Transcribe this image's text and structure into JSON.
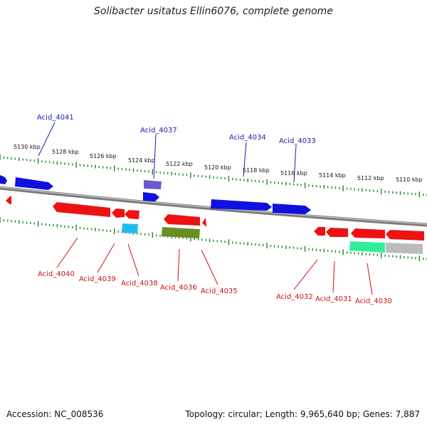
{
  "title": "Solibacter usitatus Ellin6076, complete genome",
  "footer": {
    "accession": "Accession: NC_008536",
    "summary": "Topology: circular; Length: 9,965,640 bp; Genes: 7,887"
  },
  "colors": {
    "backbone": "#888888",
    "ticks": "#1a8a1a",
    "forward_gene": "#1010e0",
    "reverse_gene": "#ee1111",
    "forward_label": "#1a1aaa",
    "reverse_label": "#cc1111",
    "purple_gene": "#6a5acd",
    "cyan_gene": "#22bbee",
    "olive_gene": "#6b8e23",
    "teal_gene": "#33ee99",
    "grey_gene": "#bbbbbb"
  },
  "scale_labels": [
    "5130 kbp",
    "5128 kbp",
    "5126 kbp",
    "5124 kbp",
    "5122 kbp",
    "5120 kbp",
    "5118 kbp",
    "5116 kbp",
    "5114 kbp",
    "5112 kbp",
    "5110 kbp"
  ],
  "forward_labels": [
    "Acid_4041",
    "Acid_4037",
    "Acid_4034",
    "Acid_4033"
  ],
  "reverse_labels": [
    "Acid_4040",
    "Acid_4039",
    "Acid_4038",
    "Acid_4036",
    "Acid_4035",
    "Acid_4032",
    "Acid_4031",
    "Acid_4030"
  ]
}
